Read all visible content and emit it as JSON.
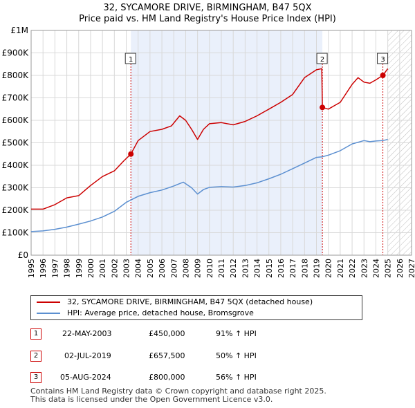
{
  "title_line1": "32, SYCAMORE DRIVE, BIRMINGHAM, B47 5QX",
  "title_line2": "Price paid vs. HM Land Registry's House Price Index (HPI)",
  "colors": {
    "property": "#cc0000",
    "hpi": "#5b8fd0",
    "marker_border": "#cc0000",
    "grid": "#d8d8d8",
    "shade": "#eaf0fb"
  },
  "legend": {
    "property_label": "32, SYCAMORE DRIVE, BIRMINGHAM, B47 5QX (detached house)",
    "hpi_label": "HPI: Average price, detached house, Bromsgrove"
  },
  "sales": [
    {
      "num": "1",
      "date": "22-MAY-2003",
      "price": "£450,000",
      "hpi": "91% ↑ HPI"
    },
    {
      "num": "2",
      "date": "02-JUL-2019",
      "price": "£657,500",
      "hpi": "50% ↑ HPI"
    },
    {
      "num": "3",
      "date": "05-AUG-2024",
      "price": "£800,000",
      "hpi": "56% ↑ HPI"
    }
  ],
  "footer_line1": "Contains HM Land Registry data © Crown copyright and database right 2025.",
  "footer_line2": "This data is licensed under the Open Government Licence v3.0.",
  "chart_data": {
    "type": "line",
    "title": "Price paid vs. HM Land Registry's House Price Index (HPI)",
    "xlabel": "",
    "ylabel": "",
    "xlim": [
      1995,
      2027
    ],
    "ylim": [
      0,
      1000000
    ],
    "y_ticks": [
      0,
      100000,
      200000,
      300000,
      400000,
      500000,
      600000,
      700000,
      800000,
      900000,
      1000000
    ],
    "y_tick_labels": [
      "£0",
      "£100K",
      "£200K",
      "£300K",
      "£400K",
      "£500K",
      "£600K",
      "£700K",
      "£800K",
      "£900K",
      "£1M"
    ],
    "x_ticks": [
      1995,
      1996,
      1997,
      1998,
      1999,
      2000,
      2001,
      2002,
      2003,
      2004,
      2005,
      2006,
      2007,
      2008,
      2009,
      2010,
      2011,
      2012,
      2013,
      2014,
      2015,
      2016,
      2017,
      2018,
      2019,
      2020,
      2021,
      2022,
      2023,
      2024,
      2025,
      2026,
      2027
    ],
    "x_tick_labels": [
      "1995",
      "1996",
      "1997",
      "1998",
      "1999",
      "2000",
      "2001",
      "2002",
      "2003",
      "2004",
      "2005",
      "2006",
      "2007",
      "2008",
      "2009",
      "2010",
      "2011",
      "2012",
      "2013",
      "2014",
      "2015",
      "2016",
      "2017",
      "2018",
      "2019",
      "2020",
      "2021",
      "2022",
      "2023",
      "2024",
      "2025",
      "2026",
      "2027"
    ],
    "shaded_region_x": [
      2003.39,
      2019.5
    ],
    "forecast_hatch_from_x": 2025.0,
    "sale_markers": [
      {
        "label": "1",
        "x": 2003.39,
        "y": 450000
      },
      {
        "label": "2",
        "x": 2019.5,
        "y": 657500
      },
      {
        "label": "3",
        "x": 2024.59,
        "y": 800000
      }
    ],
    "series": [
      {
        "name": "32, SYCAMORE DRIVE, BIRMINGHAM, B47 5QX (detached house)",
        "x": [
          1995,
          1996,
          1997,
          1997.5,
          1998,
          1999,
          2000,
          2000.5,
          2001,
          2002,
          2002.8,
          2003.39,
          2004,
          2005,
          2006,
          2006.8,
          2007.5,
          2008,
          2008.5,
          2009,
          2009.5,
          2010,
          2011,
          2012,
          2013,
          2014,
          2015,
          2016,
          2017,
          2018,
          2019,
          2019.45,
          2019.5,
          2020,
          2020.5,
          2021,
          2021.5,
          2022,
          2022.5,
          2023,
          2023.5,
          2024,
          2024.59,
          2025
        ],
        "y": [
          205000,
          205000,
          225000,
          240000,
          255000,
          265000,
          310000,
          330000,
          350000,
          375000,
          420000,
          450000,
          510000,
          550000,
          560000,
          575000,
          620000,
          600000,
          560000,
          515000,
          560000,
          585000,
          590000,
          580000,
          595000,
          620000,
          650000,
          680000,
          715000,
          790000,
          825000,
          830000,
          657500,
          650000,
          665000,
          680000,
          720000,
          760000,
          790000,
          770000,
          765000,
          780000,
          800000,
          830000
        ]
      },
      {
        "name": "HPI: Average price, detached house, Bromsgrove",
        "x": [
          1995,
          1996,
          1997,
          1998,
          1999,
          2000,
          2001,
          2002,
          2003,
          2004,
          2005,
          2006,
          2007,
          2007.8,
          2008.5,
          2009,
          2009.5,
          2010,
          2011,
          2012,
          2013,
          2014,
          2015,
          2016,
          2017,
          2018,
          2019,
          2019.5,
          2020,
          2021,
          2022,
          2023,
          2023.5,
          2024,
          2024.59,
          2025
        ],
        "y": [
          105000,
          108000,
          115000,
          125000,
          138000,
          152000,
          170000,
          195000,
          235000,
          262000,
          278000,
          290000,
          308000,
          325000,
          300000,
          272000,
          292000,
          302000,
          305000,
          303000,
          310000,
          322000,
          340000,
          360000,
          385000,
          410000,
          435000,
          438000,
          445000,
          465000,
          495000,
          510000,
          505000,
          508000,
          510000,
          515000
        ]
      }
    ]
  }
}
